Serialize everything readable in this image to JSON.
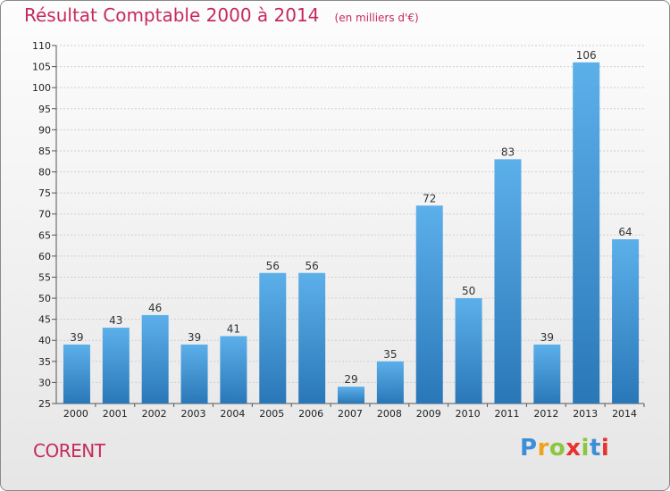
{
  "chart_data": {
    "type": "bar",
    "title": "Résultat Comptable 2000 à 2014",
    "subtitle": "(en milliers d'€)",
    "categories": [
      "2000",
      "2001",
      "2002",
      "2003",
      "2004",
      "2005",
      "2006",
      "2007",
      "2008",
      "2009",
      "2010",
      "2011",
      "2012",
      "2013",
      "2014"
    ],
    "values": [
      39,
      43,
      46,
      39,
      41,
      56,
      56,
      29,
      35,
      72,
      50,
      83,
      39,
      106,
      64
    ],
    "ylim": [
      25,
      110
    ],
    "yticks": [
      25,
      30,
      35,
      40,
      45,
      50,
      55,
      60,
      65,
      70,
      75,
      80,
      85,
      90,
      95,
      100,
      105,
      110
    ],
    "grid": true,
    "bar_color": "#3d8fd4",
    "xlabel": "",
    "ylabel": ""
  },
  "commune": "CORENT",
  "logo": {
    "letters": [
      "P",
      "r",
      "o",
      "x",
      "i",
      "t",
      "i"
    ],
    "colors": [
      "#3c8ed8",
      "#f0a31a",
      "#8cc63f",
      "#e8322d",
      "#8cc63f",
      "#3c8ed8",
      "#e8322d"
    ]
  },
  "colors": {
    "title": "#c62a5a",
    "grid": "#cfcfcf"
  }
}
